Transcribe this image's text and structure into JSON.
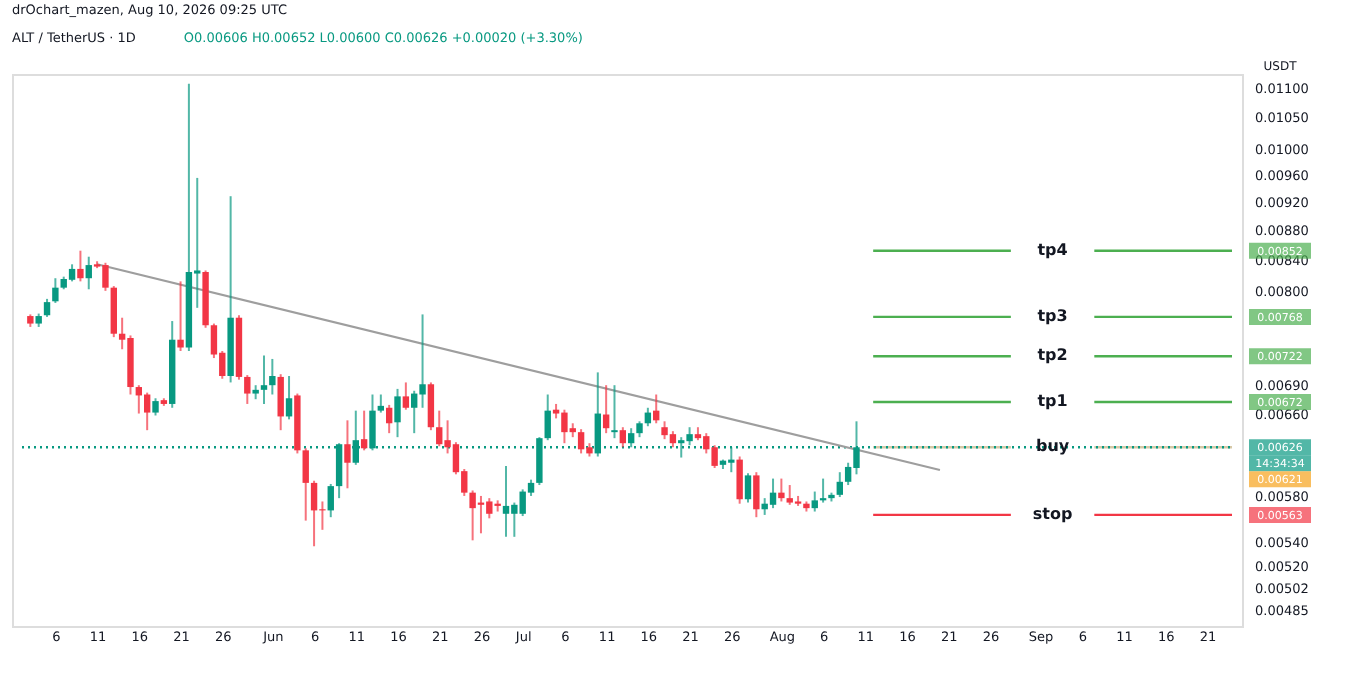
{
  "chart_data": {
    "type": "candlestick",
    "title": "ALT / TetherUS · 1D",
    "subtitle": "O0.00606 H0.00652 L0.00600 C0.00626 +0.00020 (+3.30%)",
    "ylabel": "USDT",
    "annotations": [
      "drOchart_mazen, Aug 10, 2026 09:25 UTC",
      "0.00626",
      "0.00852",
      "0.00768",
      "0.00722",
      "0.00672",
      "0.00563",
      "14:34:34",
      "0.00621"
    ],
    "x": [
      "2026-05-03",
      "2026-05-04",
      "2026-05-05",
      "2026-05-06",
      "2026-05-07",
      "2026-05-08",
      "2026-05-09",
      "2026-05-10",
      "2026-05-11",
      "2026-05-12",
      "2026-05-13",
      "2026-05-14",
      "2026-05-15",
      "2026-05-16",
      "2026-05-17",
      "2026-05-18",
      "2026-05-19",
      "2026-05-20",
      "2026-05-21",
      "2026-05-22",
      "2026-05-23",
      "2026-05-24",
      "2026-05-25",
      "2026-05-26",
      "2026-05-27",
      "2026-05-28",
      "2026-05-29",
      "2026-05-30",
      "2026-05-31",
      "2026-06-01",
      "2026-06-02",
      "2026-06-03",
      "2026-06-04",
      "2026-06-05",
      "2026-06-06",
      "2026-06-07",
      "2026-06-08",
      "2026-06-09",
      "2026-06-10",
      "2026-06-11",
      "2026-06-12",
      "2026-06-13",
      "2026-06-14",
      "2026-06-15",
      "2026-06-16",
      "2026-06-17",
      "2026-06-18",
      "2026-06-19",
      "2026-06-20",
      "2026-06-21",
      "2026-06-22",
      "2026-06-23",
      "2026-06-24",
      "2026-06-25",
      "2026-06-26",
      "2026-06-27",
      "2026-06-28",
      "2026-06-29",
      "2026-06-30",
      "2026-07-01",
      "2026-07-02",
      "2026-07-03",
      "2026-07-04",
      "2026-07-05",
      "2026-07-06",
      "2026-07-07",
      "2026-07-08",
      "2026-07-09",
      "2026-07-10",
      "2026-07-11",
      "2026-07-12",
      "2026-07-13",
      "2026-07-14",
      "2026-07-15",
      "2026-07-16",
      "2026-07-17",
      "2026-07-18",
      "2026-07-19",
      "2026-07-20",
      "2026-07-21",
      "2026-07-22",
      "2026-07-23",
      "2026-07-24",
      "2026-07-25",
      "2026-07-26",
      "2026-07-27",
      "2026-07-28",
      "2026-07-29",
      "2026-07-30",
      "2026-07-31",
      "2026-08-01",
      "2026-08-02",
      "2026-08-03",
      "2026-08-04",
      "2026-08-05",
      "2026-08-06",
      "2026-08-07",
      "2026-08-08",
      "2026-08-09",
      "2026-08-10"
    ],
    "ohlc": [
      [
        0.00769,
        0.00771,
        0.00756,
        0.0076
      ],
      [
        0.0076,
        0.00772,
        0.00756,
        0.00769
      ],
      [
        0.0077,
        0.0079,
        0.00768,
        0.00786
      ],
      [
        0.00787,
        0.00816,
        0.00785,
        0.00804
      ],
      [
        0.00804,
        0.00818,
        0.00802,
        0.00815
      ],
      [
        0.00814,
        0.00834,
        0.00812,
        0.00828
      ],
      [
        0.00828,
        0.00852,
        0.00812,
        0.00816
      ],
      [
        0.00816,
        0.00844,
        0.00802,
        0.00833
      ],
      [
        0.00834,
        0.00838,
        0.00829,
        0.00831
      ],
      [
        0.00833,
        0.00836,
        0.008,
        0.00804
      ],
      [
        0.00804,
        0.00806,
        0.00744,
        0.00748
      ],
      [
        0.00748,
        0.00767,
        0.0073,
        0.00741
      ],
      [
        0.00743,
        0.00746,
        0.0068,
        0.00688
      ],
      [
        0.00688,
        0.0069,
        0.0066,
        0.00679
      ],
      [
        0.0068,
        0.00682,
        0.00643,
        0.00661
      ],
      [
        0.00661,
        0.00676,
        0.00658,
        0.00673
      ],
      [
        0.00674,
        0.00676,
        0.00668,
        0.0067
      ],
      [
        0.0067,
        0.00763,
        0.00666,
        0.00741
      ],
      [
        0.00741,
        0.00812,
        0.00728,
        0.00732
      ],
      [
        0.00732,
        0.01107,
        0.00728,
        0.00824
      ],
      [
        0.00822,
        0.00955,
        0.00779,
        0.00826
      ],
      [
        0.00824,
        0.00826,
        0.00755,
        0.00758
      ],
      [
        0.00758,
        0.0076,
        0.0072,
        0.00724
      ],
      [
        0.00726,
        0.00728,
        0.00697,
        0.007
      ],
      [
        0.007,
        0.00928,
        0.00693,
        0.00767
      ],
      [
        0.00767,
        0.0077,
        0.00696,
        0.00699
      ],
      [
        0.00699,
        0.00701,
        0.0067,
        0.00681
      ],
      [
        0.00681,
        0.0069,
        0.00675,
        0.00685
      ],
      [
        0.00685,
        0.00723,
        0.0067,
        0.0069
      ],
      [
        0.0069,
        0.00719,
        0.0068,
        0.007
      ],
      [
        0.00699,
        0.00702,
        0.00643,
        0.00657
      ],
      [
        0.00657,
        0.007,
        0.00654,
        0.00676
      ],
      [
        0.00679,
        0.00681,
        0.0062,
        0.00623
      ],
      [
        0.00623,
        0.00625,
        0.00558,
        0.00592
      ],
      [
        0.00592,
        0.00594,
        0.00536,
        0.00567
      ],
      [
        0.00568,
        0.00575,
        0.0055,
        0.00567
      ],
      [
        0.00567,
        0.00591,
        0.00561,
        0.00589
      ],
      [
        0.00589,
        0.0063,
        0.00578,
        0.00629
      ],
      [
        0.00629,
        0.00653,
        0.00587,
        0.00611
      ],
      [
        0.00611,
        0.00663,
        0.00609,
        0.00633
      ],
      [
        0.00634,
        0.00663,
        0.00623,
        0.00625
      ],
      [
        0.00625,
        0.0068,
        0.00623,
        0.00663
      ],
      [
        0.00663,
        0.0068,
        0.00661,
        0.00668
      ],
      [
        0.00666,
        0.00669,
        0.0064,
        0.0065
      ],
      [
        0.00651,
        0.00686,
        0.00636,
        0.00678
      ],
      [
        0.00678,
        0.00693,
        0.00664,
        0.00666
      ],
      [
        0.00666,
        0.00684,
        0.0064,
        0.00681
      ],
      [
        0.0068,
        0.00771,
        0.00666,
        0.00691
      ],
      [
        0.00691,
        0.00693,
        0.00643,
        0.00646
      ],
      [
        0.00646,
        0.00663,
        0.00627,
        0.00629
      ],
      [
        0.00633,
        0.00653,
        0.0062,
        0.00626
      ],
      [
        0.00629,
        0.00631,
        0.006,
        0.00602
      ],
      [
        0.00603,
        0.00605,
        0.0058,
        0.00583
      ],
      [
        0.00583,
        0.00585,
        0.00541,
        0.00569
      ],
      [
        0.00574,
        0.0058,
        0.00547,
        0.00572
      ],
      [
        0.00575,
        0.00578,
        0.0056,
        0.00564
      ],
      [
        0.00573,
        0.00576,
        0.00566,
        0.00571
      ],
      [
        0.00564,
        0.00608,
        0.00544,
        0.00571
      ],
      [
        0.00564,
        0.00574,
        0.00544,
        0.00572
      ],
      [
        0.00564,
        0.00586,
        0.00562,
        0.00584
      ],
      [
        0.00583,
        0.00595,
        0.0058,
        0.00592
      ],
      [
        0.00592,
        0.00636,
        0.0059,
        0.00635
      ],
      [
        0.00635,
        0.0068,
        0.00633,
        0.00663
      ],
      [
        0.00664,
        0.0067,
        0.00655,
        0.0066
      ],
      [
        0.00661,
        0.00664,
        0.0063,
        0.00641
      ],
      [
        0.00645,
        0.0065,
        0.00636,
        0.00641
      ],
      [
        0.00641,
        0.00644,
        0.0062,
        0.00624
      ],
      [
        0.00626,
        0.0063,
        0.00617,
        0.0062
      ],
      [
        0.0062,
        0.00704,
        0.00617,
        0.0066
      ],
      [
        0.00659,
        0.0069,
        0.0064,
        0.00645
      ],
      [
        0.00641,
        0.0069,
        0.00635,
        0.00643
      ],
      [
        0.00643,
        0.00646,
        0.00626,
        0.0063
      ],
      [
        0.0063,
        0.00645,
        0.00626,
        0.0064
      ],
      [
        0.0064,
        0.00652,
        0.00636,
        0.0065
      ],
      [
        0.0065,
        0.00666,
        0.00647,
        0.00661
      ],
      [
        0.00663,
        0.0068,
        0.0065,
        0.00653
      ],
      [
        0.00646,
        0.00652,
        0.00634,
        0.00638
      ],
      [
        0.00639,
        0.00642,
        0.00626,
        0.0063
      ],
      [
        0.0063,
        0.00636,
        0.00616,
        0.00633
      ],
      [
        0.00632,
        0.00646,
        0.00628,
        0.00639
      ],
      [
        0.00639,
        0.00646,
        0.00633,
        0.00635
      ],
      [
        0.00637,
        0.0064,
        0.0062,
        0.00624
      ],
      [
        0.00626,
        0.00628,
        0.00606,
        0.00608
      ],
      [
        0.00609,
        0.00614,
        0.00605,
        0.00613
      ],
      [
        0.00611,
        0.00626,
        0.00602,
        0.00614
      ],
      [
        0.00614,
        0.00617,
        0.00573,
        0.00577
      ],
      [
        0.00577,
        0.00601,
        0.00574,
        0.00599
      ],
      [
        0.00599,
        0.00602,
        0.00561,
        0.00568
      ],
      [
        0.00568,
        0.00578,
        0.00563,
        0.00573
      ],
      [
        0.00572,
        0.00596,
        0.00569,
        0.00583
      ],
      [
        0.00583,
        0.00596,
        0.00575,
        0.00578
      ],
      [
        0.00578,
        0.0059,
        0.00572,
        0.00574
      ],
      [
        0.00575,
        0.0058,
        0.00571,
        0.00573
      ],
      [
        0.00573,
        0.00575,
        0.00566,
        0.00569
      ],
      [
        0.00569,
        0.00584,
        0.00566,
        0.00576
      ],
      [
        0.00576,
        0.00596,
        0.00574,
        0.00578
      ],
      [
        0.00578,
        0.00583,
        0.00575,
        0.00581
      ],
      [
        0.00581,
        0.00602,
        0.00579,
        0.00593
      ],
      [
        0.00593,
        0.00611,
        0.0059,
        0.00607
      ],
      [
        0.00606,
        0.00652,
        0.006,
        0.00626
      ]
    ],
    "colors": [
      "#f23645",
      "#089981",
      "#089981",
      "#089981",
      "#089981",
      "#089981",
      "#f23645",
      "#089981",
      "#f23645",
      "#f23645",
      "#f23645",
      "#f23645",
      "#f23645",
      "#f23645",
      "#f23645",
      "#089981",
      "#f23645",
      "#089981",
      "#f23645",
      "#089981",
      "#089981",
      "#f23645",
      "#f23645",
      "#f23645",
      "#089981",
      "#f23645",
      "#f23645",
      "#089981",
      "#089981",
      "#089981",
      "#f23645",
      "#089981",
      "#f23645",
      "#f23645",
      "#f23645",
      "#f23645",
      "#089981",
      "#089981",
      "#f23645",
      "#089981",
      "#f23645",
      "#089981",
      "#089981",
      "#f23645",
      "#089981",
      "#f23645",
      "#089981",
      "#089981",
      "#f23645",
      "#f23645",
      "#f23645",
      "#f23645",
      "#f23645",
      "#f23645",
      "#f23645",
      "#f23645",
      "#f23645",
      "#089981",
      "#089981",
      "#089981",
      "#089981",
      "#089981",
      "#089981",
      "#f23645",
      "#f23645",
      "#f23645",
      "#f23645",
      "#f23645",
      "#089981",
      "#f23645",
      "#089981",
      "#f23645",
      "#089981",
      "#089981",
      "#089981",
      "#f23645",
      "#f23645",
      "#f23645",
      "#089981",
      "#089981",
      "#f23645",
      "#f23645",
      "#f23645",
      "#089981",
      "#089981",
      "#f23645",
      "#089981",
      "#f23645",
      "#089981",
      "#089981",
      "#f23645",
      "#f23645",
      "#f23645",
      "#f23645",
      "#089981",
      "#089981",
      "#089981",
      "#089981",
      "#089981",
      "#089981"
    ],
    "series": [
      {
        "type": "line",
        "x": [
          "2026-05-11",
          "2026-08-20"
        ],
        "values": [
          0.00834,
          0.00604
        ],
        "color": "#9e9e9e"
      }
    ],
    "ref_lines": [
      {
        "axis": "y",
        "value": 0.00626,
        "color": "#089981",
        "line_style": "dotted"
      },
      {
        "axis": "y",
        "value": 0.00852,
        "label": "tp4",
        "color": "#4caf50"
      },
      {
        "axis": "y",
        "value": 0.00768,
        "label": "tp3",
        "color": "#4caf50"
      },
      {
        "axis": "y",
        "value": 0.00722,
        "label": "tp2",
        "color": "#4caf50"
      },
      {
        "axis": "y",
        "value": 0.00672,
        "label": "tp1",
        "color": "#4caf50"
      },
      {
        "axis": "y",
        "value": 0.00563,
        "label": "stop",
        "color": "#f23645"
      },
      {
        "axis": "y",
        "value": 0.00626,
        "label": "buy",
        "color": "#d6c9a8"
      }
    ],
    "log": "y",
    "ylim": [
      0.00473,
      0.01124
    ],
    "yticks": [
      {
        "value": 0.011,
        "label": "0.01100"
      },
      {
        "value": 0.0105,
        "label": "0.01050"
      },
      {
        "value": 0.01,
        "label": "0.01000"
      },
      {
        "value": 0.0096,
        "label": "0.00960"
      },
      {
        "value": 0.0092,
        "label": "0.00920"
      },
      {
        "value": 0.0088,
        "label": "0.00880"
      },
      {
        "value": 0.0084,
        "label": "0.00840"
      },
      {
        "value": 0.008,
        "label": "0.00800"
      },
      {
        "value": 0.0069,
        "label": "0.00690"
      },
      {
        "value": 0.0066,
        "label": "0.00660"
      },
      {
        "value": 0.0058,
        "label": "0.00580"
      },
      {
        "value": 0.0054,
        "label": "0.00540"
      },
      {
        "value": 0.0052,
        "label": "0.00520"
      },
      {
        "value": 0.00502,
        "label": "0.00502"
      },
      {
        "value": 0.00485,
        "label": "0.00485"
      }
    ],
    "xlim": [
      "2026-05-02",
      "2026-09-24"
    ],
    "xticks": [
      {
        "value": "2026-05-06",
        "label": "6"
      },
      {
        "value": "2026-05-11",
        "label": "11"
      },
      {
        "value": "2026-05-16",
        "label": "16"
      },
      {
        "value": "2026-05-21",
        "label": "21"
      },
      {
        "value": "2026-05-26",
        "label": "26"
      },
      {
        "value": "2026-06-01",
        "label": "Jun"
      },
      {
        "value": "2026-06-06",
        "label": "6"
      },
      {
        "value": "2026-06-11",
        "label": "11"
      },
      {
        "value": "2026-06-16",
        "label": "16"
      },
      {
        "value": "2026-06-21",
        "label": "21"
      },
      {
        "value": "2026-06-26",
        "label": "26"
      },
      {
        "value": "2026-07-01",
        "label": "Jul"
      },
      {
        "value": "2026-07-06",
        "label": "6"
      },
      {
        "value": "2026-07-11",
        "label": "11"
      },
      {
        "value": "2026-07-16",
        "label": "16"
      },
      {
        "value": "2026-07-21",
        "label": "21"
      },
      {
        "value": "2026-07-26",
        "label": "26"
      },
      {
        "value": "2026-08-01",
        "label": "Aug"
      },
      {
        "value": "2026-08-06",
        "label": "6"
      },
      {
        "value": "2026-08-11",
        "label": "11"
      },
      {
        "value": "2026-08-16",
        "label": "16"
      },
      {
        "value": "2026-08-21",
        "label": "21"
      },
      {
        "value": "2026-08-26",
        "label": "26"
      },
      {
        "value": "2026-09-01",
        "label": "Sep"
      },
      {
        "value": "2026-09-06",
        "label": "6"
      },
      {
        "value": "2026-09-11",
        "label": "11"
      },
      {
        "value": "2026-09-16",
        "label": "16"
      },
      {
        "value": "2026-09-21",
        "label": "21"
      }
    ],
    "grid": false
  }
}
